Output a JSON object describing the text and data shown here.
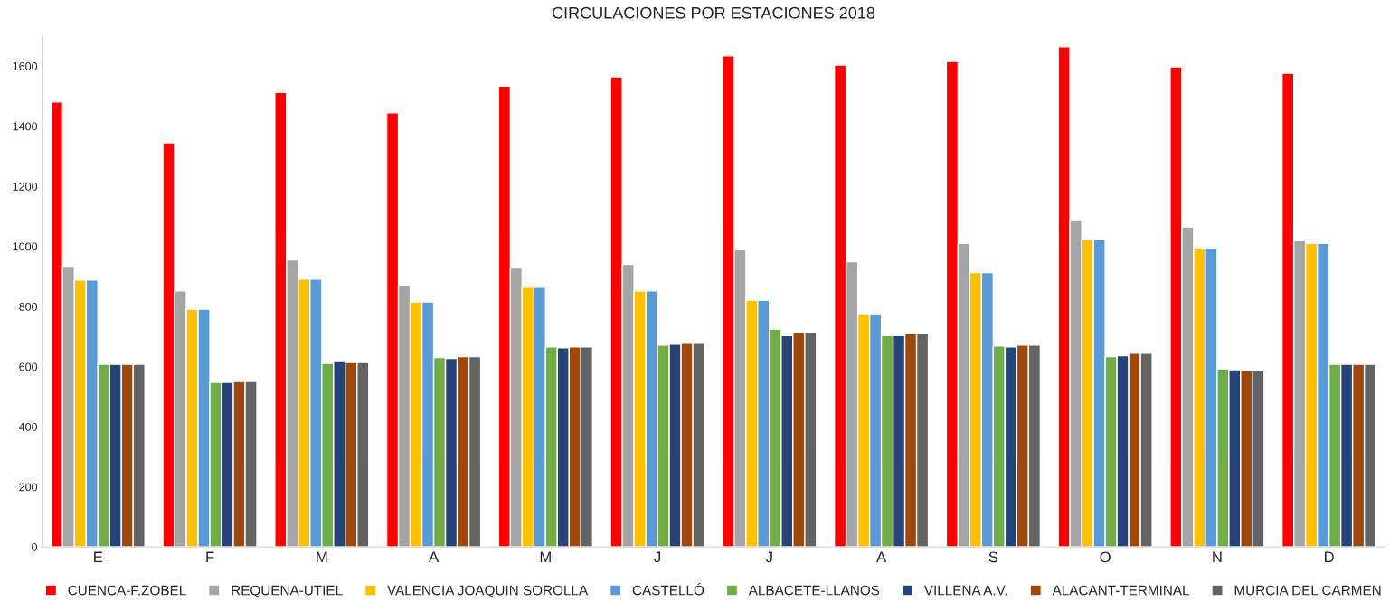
{
  "chart_data": {
    "type": "bar",
    "title": "CIRCULACIONES POR ESTACIONES 2018",
    "categories": [
      "E",
      "F",
      "M",
      "A",
      "M",
      "J",
      "J",
      "A",
      "S",
      "O",
      "N",
      "D"
    ],
    "series": [
      {
        "name": "CUENCA-F.ZOBEL",
        "color": "#ff0000",
        "values": [
          1481,
          1345,
          1512,
          1445,
          1533,
          1564,
          1634,
          1603,
          1615,
          1664,
          1597,
          1576
        ]
      },
      {
        "name": "REQUENA-UTIEL",
        "color": "#a5a5a5",
        "values": [
          934,
          852,
          955,
          870,
          928,
          940,
          989,
          949,
          1010,
          1089,
          1065,
          1019
        ]
      },
      {
        "name": "VALENCIA JOAQUIN SOROLLA",
        "color": "#ffc000",
        "values": [
          888,
          791,
          891,
          815,
          864,
          852,
          821,
          776,
          913,
          1022,
          995,
          1010
        ]
      },
      {
        "name": "CASTELLÓ",
        "color": "#5b9bd5",
        "values": [
          888,
          791,
          891,
          815,
          864,
          852,
          821,
          776,
          913,
          1022,
          995,
          1010
        ]
      },
      {
        "name": "ALBACETE-LLANOS",
        "color": "#70ad47",
        "values": [
          608,
          548,
          611,
          630,
          666,
          672,
          724,
          703,
          669,
          633,
          593,
          608
        ]
      },
      {
        "name": "VILLENA A.V.",
        "color": "#264478",
        "values": [
          608,
          548,
          620,
          627,
          663,
          675,
          703,
          703,
          666,
          636,
          590,
          608
        ]
      },
      {
        "name": "ALACANT-TERMINAL",
        "color": "#9e480e",
        "values": [
          608,
          551,
          614,
          633,
          666,
          678,
          715,
          709,
          672,
          645,
          587,
          608
        ]
      },
      {
        "name": "MURCIA DEL CARMEN",
        "color": "#636363",
        "values": [
          608,
          551,
          614,
          633,
          666,
          678,
          715,
          709,
          672,
          645,
          587,
          608
        ]
      }
    ],
    "ylim": [
      0,
      1700
    ],
    "yticks": [
      0,
      200,
      400,
      600,
      800,
      1000,
      1200,
      1400,
      1600
    ],
    "grid": false,
    "legend": "bottom"
  }
}
